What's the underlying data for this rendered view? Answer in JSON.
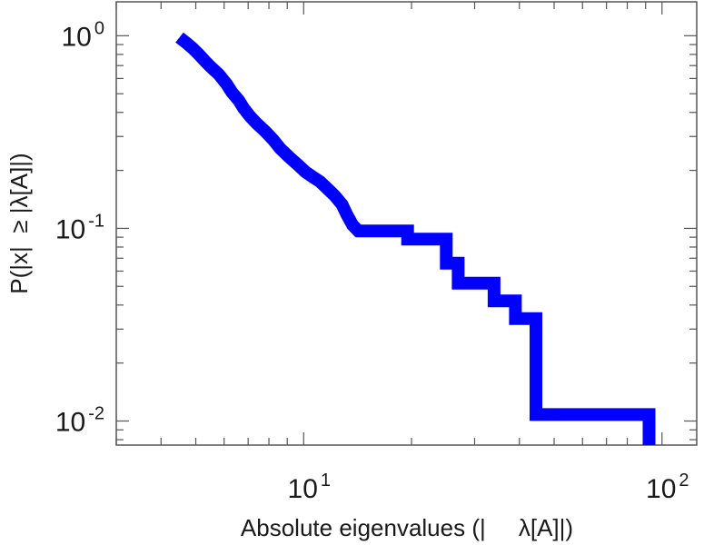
{
  "chart_data": {
    "type": "line",
    "step": true,
    "title": "",
    "xlabel": "Absolute eigenvalues (|     λ[A]|)",
    "ylabel": "P(|x|  ≥ |λ[A]|)",
    "x_scale": "log",
    "y_scale": "log",
    "xlim": [
      3.0,
      125.0
    ],
    "ylim": [
      0.0075,
      1.5
    ],
    "grid": false,
    "legend": "none",
    "x_ticks": [
      {
        "base": "10",
        "exp": "1"
      },
      {
        "base": "10",
        "exp": "2"
      }
    ],
    "y_ticks": [
      {
        "base": "10",
        "exp": "0"
      },
      {
        "base": "10",
        "exp": "-1"
      },
      {
        "base": "10",
        "exp": "-2"
      }
    ],
    "series": [
      {
        "color": "#0000ff",
        "points": [
          [
            4.5,
            0.98
          ],
          [
            4.7,
            0.92
          ],
          [
            4.9,
            0.86
          ],
          [
            5.1,
            0.8
          ],
          [
            5.3,
            0.74
          ],
          [
            5.5,
            0.69
          ],
          [
            5.8,
            0.63
          ],
          [
            6.1,
            0.56
          ],
          [
            6.3,
            0.51
          ],
          [
            6.6,
            0.46
          ],
          [
            6.8,
            0.42
          ],
          [
            7.1,
            0.38
          ],
          [
            7.4,
            0.35
          ],
          [
            7.8,
            0.32
          ],
          [
            8.2,
            0.29
          ],
          [
            8.6,
            0.26
          ],
          [
            9.1,
            0.235
          ],
          [
            9.6,
            0.215
          ],
          [
            10.1,
            0.197
          ],
          [
            10.6,
            0.185
          ],
          [
            11.1,
            0.175
          ],
          [
            11.6,
            0.162
          ],
          [
            12.2,
            0.148
          ],
          [
            12.8,
            0.133
          ],
          [
            13.2,
            0.118
          ],
          [
            13.7,
            0.104
          ],
          [
            14.2,
            0.097
          ],
          [
            19.5,
            0.097
          ],
          [
            19.5,
            0.088
          ],
          [
            25.0,
            0.088
          ],
          [
            25.0,
            0.066
          ],
          [
            27.0,
            0.066
          ],
          [
            27.0,
            0.052
          ],
          [
            34.0,
            0.052
          ],
          [
            34.0,
            0.042
          ],
          [
            39.0,
            0.042
          ],
          [
            39.0,
            0.034
          ],
          [
            44.5,
            0.034
          ],
          [
            44.5,
            0.0108
          ],
          [
            92.0,
            0.0108
          ],
          [
            92.0,
            0.0075
          ]
        ]
      }
    ]
  }
}
